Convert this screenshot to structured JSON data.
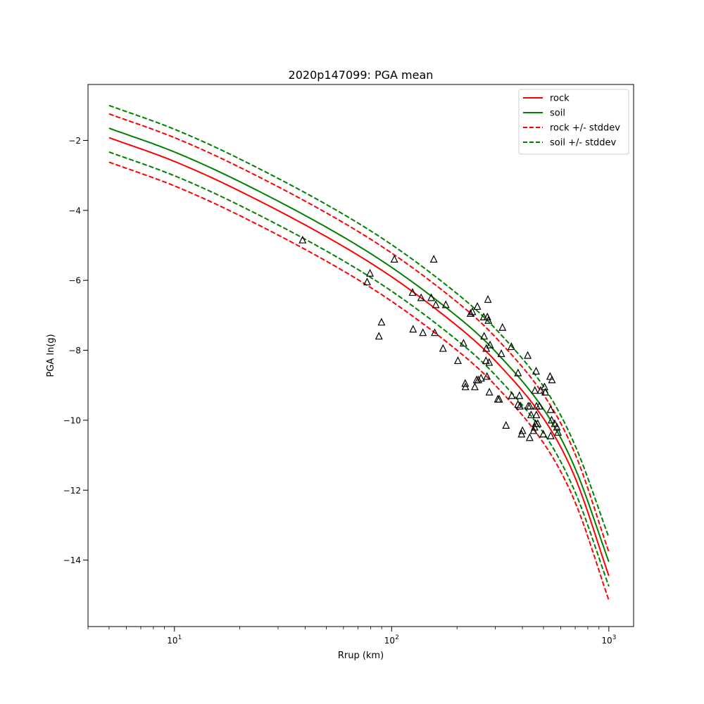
{
  "chart_data": {
    "type": "line",
    "title": "2020p147099: PGA mean",
    "xlabel": "Rrup (km)",
    "ylabel": "PGA ln(g)",
    "xscale": "log",
    "xlim": [
      4,
      1300
    ],
    "ylim": [
      -15.9,
      -0.4
    ],
    "grid": false,
    "legend_position": "top-right",
    "x_ticks": [
      {
        "value": 10,
        "base": "10",
        "exp": "1"
      },
      {
        "value": 100,
        "base": "10",
        "exp": "2"
      },
      {
        "value": 1000,
        "base": "10",
        "exp": "3"
      }
    ],
    "y_ticks": [
      {
        "value": -2,
        "label": "−2"
      },
      {
        "value": -4,
        "label": "−4"
      },
      {
        "value": -6,
        "label": "−6"
      },
      {
        "value": -8,
        "label": "−8"
      },
      {
        "value": -10,
        "label": "−10"
      },
      {
        "value": -12,
        "label": "−12"
      },
      {
        "value": -14,
        "label": "−14"
      }
    ],
    "series": [
      {
        "name": "rock",
        "color": "#ff0000",
        "style": "solid",
        "points": [
          [
            5,
            -1.92
          ],
          [
            10,
            -2.6
          ],
          [
            20,
            -3.45
          ],
          [
            50,
            -4.75
          ],
          [
            100,
            -5.9
          ],
          [
            200,
            -7.3
          ],
          [
            300,
            -8.3
          ],
          [
            500,
            -9.95
          ],
          [
            700,
            -11.65
          ],
          [
            1000,
            -14.45
          ]
        ]
      },
      {
        "name": "soil",
        "color": "#008000",
        "style": "solid",
        "points": [
          [
            5,
            -1.65
          ],
          [
            10,
            -2.33
          ],
          [
            20,
            -3.18
          ],
          [
            50,
            -4.48
          ],
          [
            100,
            -5.63
          ],
          [
            200,
            -7.03
          ],
          [
            300,
            -8.03
          ],
          [
            500,
            -9.68
          ],
          [
            700,
            -11.38
          ],
          [
            1000,
            -14.05
          ]
        ]
      },
      {
        "name": "rock +/- stddev",
        "legend": true,
        "color": "#ff0000",
        "style": "dashed",
        "points": [
          [
            5,
            -1.24
          ],
          [
            10,
            -1.92
          ],
          [
            20,
            -2.77
          ],
          [
            50,
            -4.07
          ],
          [
            100,
            -5.22
          ],
          [
            200,
            -6.62
          ],
          [
            300,
            -7.62
          ],
          [
            500,
            -9.27
          ],
          [
            700,
            -10.97
          ],
          [
            1000,
            -13.77
          ]
        ]
      },
      {
        "name": "",
        "legend": false,
        "color": "#ff0000",
        "style": "dashed",
        "points": [
          [
            5,
            -2.62
          ],
          [
            10,
            -3.3
          ],
          [
            20,
            -4.15
          ],
          [
            50,
            -5.45
          ],
          [
            100,
            -6.6
          ],
          [
            200,
            -8.0
          ],
          [
            300,
            -9.0
          ],
          [
            500,
            -10.65
          ],
          [
            700,
            -12.35
          ],
          [
            1000,
            -15.15
          ]
        ]
      },
      {
        "name": "soil +/- stddev",
        "legend": true,
        "color": "#008000",
        "style": "dashed",
        "points": [
          [
            5,
            -1.0
          ],
          [
            10,
            -1.68
          ],
          [
            20,
            -2.53
          ],
          [
            50,
            -3.83
          ],
          [
            100,
            -4.98
          ],
          [
            200,
            -6.38
          ],
          [
            300,
            -7.38
          ],
          [
            500,
            -9.03
          ],
          [
            700,
            -10.73
          ],
          [
            1000,
            -13.35
          ]
        ]
      },
      {
        "name": "",
        "legend": false,
        "color": "#008000",
        "style": "dashed",
        "points": [
          [
            5,
            -2.33
          ],
          [
            10,
            -3.01
          ],
          [
            20,
            -3.86
          ],
          [
            50,
            -5.16
          ],
          [
            100,
            -6.31
          ],
          [
            200,
            -7.71
          ],
          [
            300,
            -8.71
          ],
          [
            500,
            -10.36
          ],
          [
            700,
            -12.06
          ],
          [
            1000,
            -14.75
          ]
        ]
      }
    ],
    "observations": {
      "marker": "triangle",
      "color": "#000000",
      "points": [
        [
          38.9,
          -4.85
        ],
        [
          79.5,
          -5.8
        ],
        [
          77.1,
          -6.05
        ],
        [
          89.8,
          -7.2
        ],
        [
          87.4,
          -7.6
        ],
        [
          102.9,
          -5.4
        ],
        [
          124.8,
          -6.35
        ],
        [
          136.7,
          -6.5
        ],
        [
          125.5,
          -7.4
        ],
        [
          139.3,
          -7.5
        ],
        [
          156.3,
          -5.4
        ],
        [
          152.2,
          -6.5
        ],
        [
          159.7,
          -6.7
        ],
        [
          177.5,
          -6.7
        ],
        [
          157.9,
          -7.5
        ],
        [
          172.4,
          -7.95
        ],
        [
          201.9,
          -8.3
        ],
        [
          214.2,
          -7.8
        ],
        [
          230.7,
          -6.95
        ],
        [
          235.3,
          -6.9
        ],
        [
          248.1,
          -6.75
        ],
        [
          277.5,
          -6.55
        ],
        [
          265.4,
          -7.05
        ],
        [
          275.9,
          -7.05
        ],
        [
          278.8,
          -7.15
        ],
        [
          266.5,
          -7.6
        ],
        [
          323.8,
          -7.35
        ],
        [
          272.7,
          -7.95
        ],
        [
          283.8,
          -7.85
        ],
        [
          319.8,
          -8.1
        ],
        [
          355.8,
          -7.9
        ],
        [
          271.8,
          -8.3
        ],
        [
          281.1,
          -8.35
        ],
        [
          274.7,
          -8.75
        ],
        [
          218.1,
          -8.95
        ],
        [
          218.6,
          -9.05
        ],
        [
          246.3,
          -8.85
        ],
        [
          250.9,
          -8.85
        ],
        [
          258.0,
          -8.8
        ],
        [
          241.5,
          -9.05
        ],
        [
          281.8,
          -9.2
        ],
        [
          308.1,
          -9.4
        ],
        [
          312.8,
          -9.4
        ],
        [
          381.8,
          -8.65
        ],
        [
          423.1,
          -8.15
        ],
        [
          462.4,
          -8.6
        ],
        [
          456.5,
          -9.15
        ],
        [
          485.5,
          -9.15
        ],
        [
          505.6,
          -9.05
        ],
        [
          509.7,
          -9.2
        ],
        [
          536.3,
          -8.75
        ],
        [
          547.1,
          -8.85
        ],
        [
          357.4,
          -9.3
        ],
        [
          387.6,
          -9.3
        ],
        [
          381.5,
          -9.55
        ],
        [
          389.5,
          -9.6
        ],
        [
          425.2,
          -9.6
        ],
        [
          432.8,
          -9.6
        ],
        [
          464.7,
          -9.6
        ],
        [
          479.0,
          -9.6
        ],
        [
          539.3,
          -9.7
        ],
        [
          438.6,
          -9.85
        ],
        [
          463.8,
          -9.85
        ],
        [
          545.0,
          -10.0
        ],
        [
          460.1,
          -10.1
        ],
        [
          470.5,
          -10.1
        ],
        [
          455.4,
          -10.2
        ],
        [
          563.6,
          -10.1
        ],
        [
          576.6,
          -10.2
        ],
        [
          400.4,
          -10.3
        ],
        [
          336.2,
          -10.15
        ],
        [
          450.3,
          -10.3
        ],
        [
          396.2,
          -10.4
        ],
        [
          499.1,
          -10.4
        ],
        [
          432.0,
          -10.5
        ],
        [
          540.1,
          -10.45
        ],
        [
          583.4,
          -10.35
        ]
      ]
    }
  }
}
